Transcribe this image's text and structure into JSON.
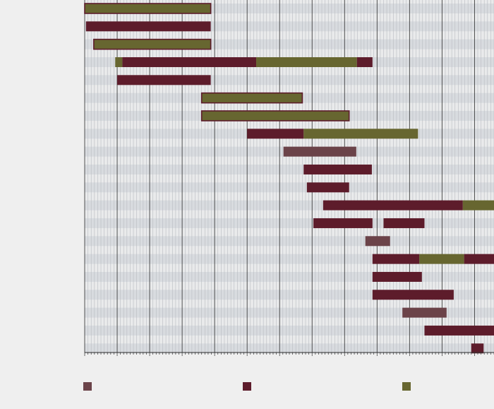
{
  "chart_data": {
    "type": "gantt",
    "title": "",
    "xlabel": "",
    "ylabel": "",
    "xlim": [
      0,
      630
    ],
    "x_major_step": 50,
    "x_minor_step": 5,
    "grid": true,
    "legend_position": "bottom",
    "series_colors": {
      "a": "#6b4349",
      "b": "#5d1c2b",
      "c": "#676630"
    },
    "legend": [
      {
        "series": "a",
        "label": ""
      },
      {
        "series": "b",
        "label": ""
      },
      {
        "series": "c",
        "label": ""
      }
    ],
    "rows": [
      [
        {
          "start": 0,
          "end": 194,
          "series": "c",
          "outline": "b"
        }
      ],
      [
        {
          "start": 2,
          "end": 194,
          "series": "b"
        }
      ],
      [
        {
          "start": 14,
          "end": 194,
          "series": "c",
          "outline": "b"
        }
      ],
      [
        {
          "start": 47,
          "end": 58,
          "series": "c"
        },
        {
          "start": 58,
          "end": 264,
          "series": "b"
        },
        {
          "start": 264,
          "end": 419,
          "series": "c"
        },
        {
          "start": 419,
          "end": 443,
          "series": "b"
        }
      ],
      [
        {
          "start": 50,
          "end": 194,
          "series": "b"
        }
      ],
      [
        {
          "start": 180,
          "end": 335,
          "series": "c",
          "outline": "b"
        }
      ],
      [
        {
          "start": 180,
          "end": 407,
          "series": "c",
          "outline": "b"
        }
      ],
      [
        {
          "start": 250,
          "end": 337,
          "series": "b"
        },
        {
          "start": 337,
          "end": 513,
          "series": "c"
        }
      ],
      [
        {
          "start": 306,
          "end": 418,
          "series": "a"
        }
      ],
      [
        {
          "start": 337,
          "end": 442,
          "series": "b"
        }
      ],
      [
        {
          "start": 342,
          "end": 407,
          "series": "b"
        }
      ],
      [
        {
          "start": 367,
          "end": 582,
          "series": "b"
        },
        {
          "start": 582,
          "end": 640,
          "series": "c"
        }
      ],
      [
        {
          "start": 352,
          "end": 443,
          "series": "b"
        },
        {
          "start": 460,
          "end": 523,
          "series": "b"
        }
      ],
      [
        {
          "start": 432,
          "end": 470,
          "series": "a"
        }
      ],
      [
        {
          "start": 443,
          "end": 515,
          "series": "b"
        },
        {
          "start": 515,
          "end": 584,
          "series": "c"
        },
        {
          "start": 584,
          "end": 640,
          "series": "b"
        }
      ],
      [
        {
          "start": 443,
          "end": 519,
          "series": "b"
        }
      ],
      [
        {
          "start": 443,
          "end": 568,
          "series": "b"
        }
      ],
      [
        {
          "start": 489,
          "end": 557,
          "series": "a"
        }
      ],
      [
        {
          "start": 523,
          "end": 630,
          "series": "b"
        }
      ],
      [
        {
          "start": 595,
          "end": 614,
          "series": "b"
        }
      ]
    ]
  }
}
